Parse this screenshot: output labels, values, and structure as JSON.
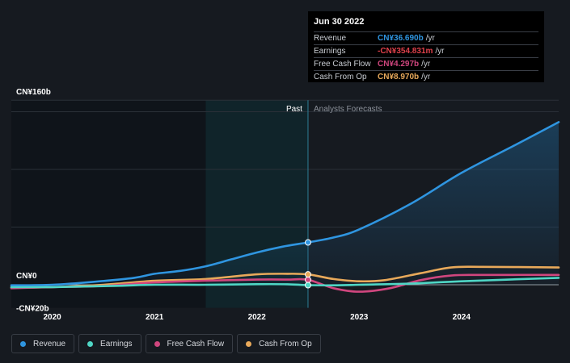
{
  "chart_data": {
    "type": "line",
    "title": "",
    "xlabel": "",
    "ylabel": "",
    "x_range": [
      2019.6,
      2024.95
    ],
    "ylim": [
      -20,
      160
    ],
    "y_tick_labels": [
      {
        "value": 160,
        "label": "CN¥160b"
      },
      {
        "value": 0,
        "label": "CN¥0"
      },
      {
        "value": -20,
        "label": "-CN¥20b"
      }
    ],
    "x_ticks": [
      {
        "value": 2020,
        "label": "2020"
      },
      {
        "value": 2021,
        "label": "2021"
      },
      {
        "value": 2022,
        "label": "2022"
      },
      {
        "value": 2023,
        "label": "2023"
      },
      {
        "value": 2024,
        "label": "2024"
      }
    ],
    "past_label": "Past",
    "forecast_label": "Analysts Forecasts",
    "divider_x": 2022.5,
    "series": [
      {
        "name": "Revenue",
        "color": "#2f95e0",
        "area": true,
        "points": [
          [
            2019.6,
            -0.5
          ],
          [
            2020.0,
            0
          ],
          [
            2020.4,
            2.5
          ],
          [
            2020.8,
            6
          ],
          [
            2021.0,
            9.5
          ],
          [
            2021.25,
            12
          ],
          [
            2021.5,
            16
          ],
          [
            2021.75,
            22
          ],
          [
            2022.0,
            28
          ],
          [
            2022.25,
            33
          ],
          [
            2022.5,
            36.69
          ],
          [
            2022.75,
            41
          ],
          [
            2023.0,
            48
          ],
          [
            2023.5,
            70
          ],
          [
            2024.0,
            97
          ],
          [
            2024.5,
            120
          ],
          [
            2024.95,
            141
          ]
        ]
      },
      {
        "name": "Earnings",
        "color": "#4fd6c5",
        "points": [
          [
            2019.6,
            -2
          ],
          [
            2020.0,
            -2
          ],
          [
            2020.6,
            -1
          ],
          [
            2021.0,
            0
          ],
          [
            2021.5,
            0
          ],
          [
            2022.0,
            0.5
          ],
          [
            2022.3,
            0.4
          ],
          [
            2022.5,
            -0.35
          ],
          [
            2022.75,
            -0.5
          ],
          [
            2023.0,
            0
          ],
          [
            2023.5,
            1
          ],
          [
            2024.0,
            3
          ],
          [
            2024.95,
            6
          ]
        ]
      },
      {
        "name": "Free Cash Flow",
        "color": "#d0467e",
        "points": [
          [
            2019.6,
            -3
          ],
          [
            2020.0,
            -2
          ],
          [
            2020.5,
            -1
          ],
          [
            2021.0,
            2
          ],
          [
            2021.5,
            3.5
          ],
          [
            2022.0,
            4.5
          ],
          [
            2022.3,
            4.5
          ],
          [
            2022.5,
            4.297
          ],
          [
            2022.75,
            -3
          ],
          [
            2023.0,
            -6
          ],
          [
            2023.3,
            -3
          ],
          [
            2023.6,
            4
          ],
          [
            2023.9,
            8
          ],
          [
            2024.2,
            8.5
          ],
          [
            2024.95,
            8.5
          ]
        ]
      },
      {
        "name": "Cash From Op",
        "color": "#e8a95a",
        "points": [
          [
            2019.6,
            -2.5
          ],
          [
            2020.0,
            -2
          ],
          [
            2020.5,
            0
          ],
          [
            2021.0,
            3.5
          ],
          [
            2021.5,
            5
          ],
          [
            2022.0,
            9
          ],
          [
            2022.3,
            9.5
          ],
          [
            2022.5,
            8.97
          ],
          [
            2022.75,
            5
          ],
          [
            2023.0,
            3
          ],
          [
            2023.25,
            4
          ],
          [
            2023.6,
            10
          ],
          [
            2023.9,
            15
          ],
          [
            2024.2,
            15.5
          ],
          [
            2024.95,
            15
          ]
        ]
      }
    ],
    "highlight": {
      "date": "Jun 30 2022",
      "x": 2022.5,
      "rows": [
        {
          "name": "Revenue",
          "value": "CN¥36.690b",
          "unit": "/yr",
          "color": "#2f95e0"
        },
        {
          "name": "Earnings",
          "value": "-CN¥354.831m",
          "unit": "/yr",
          "color": "#e0414b"
        },
        {
          "name": "Free Cash Flow",
          "value": "CN¥4.297b",
          "unit": "/yr",
          "color": "#d0467e"
        },
        {
          "name": "Cash From Op",
          "value": "CN¥8.970b",
          "unit": "/yr",
          "color": "#e8a95a"
        }
      ]
    }
  },
  "legend": [
    {
      "label": "Revenue",
      "color": "#2f95e0"
    },
    {
      "label": "Earnings",
      "color": "#4fd6c5"
    },
    {
      "label": "Free Cash Flow",
      "color": "#d0467e"
    },
    {
      "label": "Cash From Op",
      "color": "#e8a95a"
    }
  ]
}
